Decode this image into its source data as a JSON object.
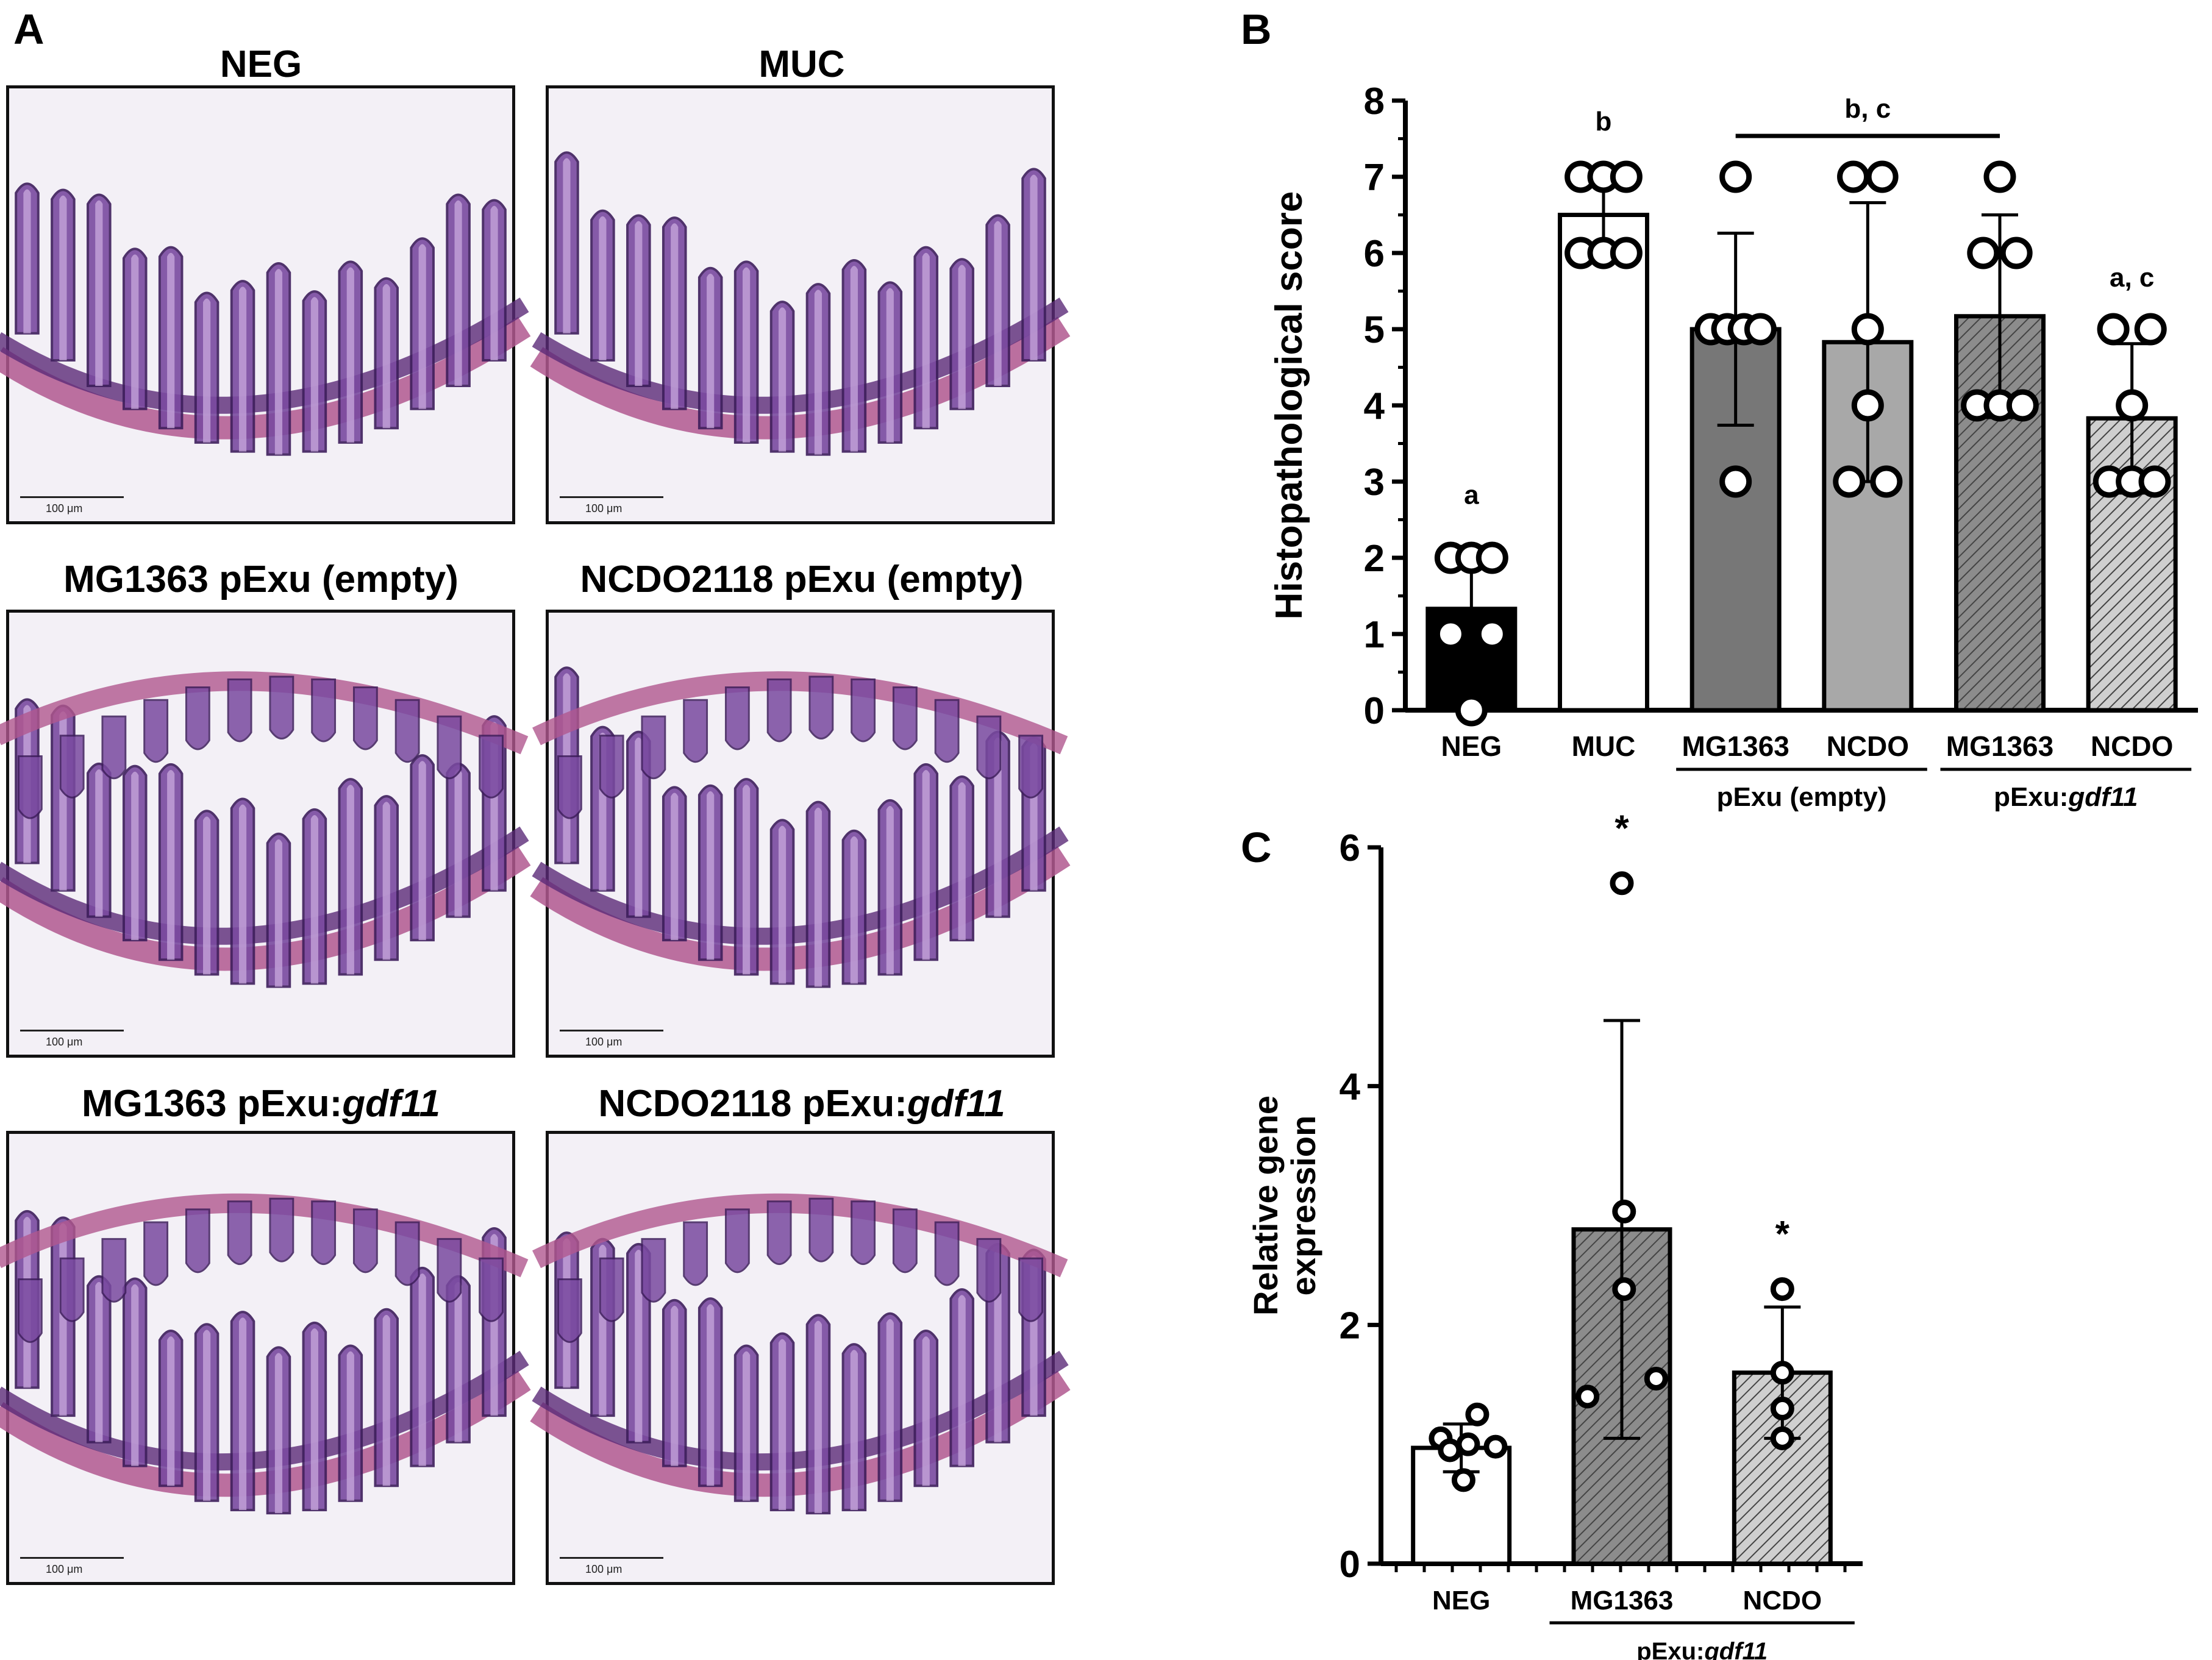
{
  "panels": {
    "a_label": "A",
    "b_label": "B",
    "c_label": "C"
  },
  "micrographs": [
    {
      "title": "NEG",
      "title_italic": "",
      "scale": "100 μm"
    },
    {
      "title": "MUC",
      "title_italic": "",
      "scale": "100 μm"
    },
    {
      "title": "MG1363 pExu (empty)",
      "title_italic": "",
      "scale": "100 μm"
    },
    {
      "title": "NCDO2118 pExu (empty)",
      "title_italic": "",
      "scale": "100 μm"
    },
    {
      "title": "MG1363 pExu:",
      "title_italic": "gdf11",
      "scale": "100 μm"
    },
    {
      "title": "NCDO2118 pExu:",
      "title_italic": "gdf11",
      "scale": "100 μm"
    }
  ],
  "chart_data": [
    {
      "panel": "B",
      "type": "bar",
      "ylabel": "Histopathological score",
      "ylim": [
        0,
        8
      ],
      "yticks": [
        0,
        1,
        2,
        3,
        4,
        5,
        6,
        7,
        8
      ],
      "categories": [
        "NEG",
        "MUC",
        "MG1363",
        "NCDO",
        "MG1363",
        "NCDO"
      ],
      "group_labels": [
        {
          "text": "pExu (empty)",
          "italic": "",
          "span": [
            2,
            3
          ]
        },
        {
          "text": "pExu:",
          "italic": "gdf11",
          "span": [
            4,
            5
          ]
        }
      ],
      "values": [
        1.33,
        6.5,
        5.0,
        4.83,
        5.17,
        3.83
      ],
      "errors": [
        0.82,
        0.55,
        1.26,
        1.83,
        1.33,
        0.98
      ],
      "fills": [
        "#000000",
        "#ffffff",
        "#777777",
        "#a8a8a8",
        "hatch-dark",
        "hatch-light"
      ],
      "points": [
        [
          {
            "y": 2,
            "dx": -0.5
          },
          {
            "y": 2,
            "dx": 0
          },
          {
            "y": 2,
            "dx": 0.5
          },
          {
            "y": 1,
            "dx": -0.5
          },
          {
            "y": 1,
            "dx": 0.5
          },
          {
            "y": 0,
            "dx": 0
          }
        ],
        [
          {
            "y": 7,
            "dx": -0.55
          },
          {
            "y": 7,
            "dx": 0
          },
          {
            "y": 7,
            "dx": 0.55
          },
          {
            "y": 6,
            "dx": -0.55
          },
          {
            "y": 6,
            "dx": 0
          },
          {
            "y": 6,
            "dx": 0.55
          }
        ],
        [
          {
            "y": 7,
            "dx": 0
          },
          {
            "y": 5,
            "dx": -0.6
          },
          {
            "y": 5,
            "dx": -0.2
          },
          {
            "y": 5,
            "dx": 0.2
          },
          {
            "y": 5,
            "dx": 0.6
          },
          {
            "y": 3,
            "dx": 0
          }
        ],
        [
          {
            "y": 7,
            "dx": -0.35
          },
          {
            "y": 7,
            "dx": 0.35
          },
          {
            "y": 5,
            "dx": 0
          },
          {
            "y": 4,
            "dx": 0
          },
          {
            "y": 3,
            "dx": -0.45
          },
          {
            "y": 3,
            "dx": 0.45
          }
        ],
        [
          {
            "y": 7,
            "dx": 0
          },
          {
            "y": 6,
            "dx": -0.4
          },
          {
            "y": 6,
            "dx": 0.4
          },
          {
            "y": 4,
            "dx": -0.55
          },
          {
            "y": 4,
            "dx": 0
          },
          {
            "y": 4,
            "dx": 0.55
          }
        ],
        [
          {
            "y": 5,
            "dx": -0.45
          },
          {
            "y": 5,
            "dx": 0.45
          },
          {
            "y": 4,
            "dx": 0
          },
          {
            "y": 3,
            "dx": -0.55
          },
          {
            "y": 3,
            "dx": 0
          },
          {
            "y": 3,
            "dx": 0.55
          }
        ]
      ],
      "annotations": [
        {
          "text": "a",
          "category": 0
        },
        {
          "text": "b",
          "category": 1
        },
        {
          "text": "b, c",
          "span": [
            2,
            4
          ]
        },
        {
          "text": "a, c",
          "category": 5
        }
      ]
    },
    {
      "panel": "C",
      "type": "bar",
      "ylabel": "Relative gene expression",
      "ylabel_lines": [
        "Relative gene",
        "expression"
      ],
      "ylim": [
        0,
        6
      ],
      "yticks": [
        0,
        2,
        4,
        6
      ],
      "categories": [
        "NEG",
        "MG1363",
        "NCDO"
      ],
      "group_labels": [
        {
          "text": "pExu:",
          "italic": "gdf11",
          "span": [
            1,
            2
          ]
        }
      ],
      "values": [
        0.97,
        2.8,
        1.6
      ],
      "errors": [
        0.2,
        1.75,
        0.55
      ],
      "fills": [
        "#ffffff",
        "hatch-dark",
        "hatch-light"
      ],
      "points": [
        [
          {
            "y": 1.25,
            "dx": 0.35
          },
          {
            "y": 1.05,
            "dx": -0.45
          },
          {
            "y": 1.0,
            "dx": 0.15
          },
          {
            "y": 0.98,
            "dx": 0.75
          },
          {
            "y": 0.95,
            "dx": -0.25
          },
          {
            "y": 0.7,
            "dx": 0.05
          }
        ],
        [
          {
            "y": 5.7,
            "dx": 0
          },
          {
            "y": 2.95,
            "dx": 0.05
          },
          {
            "y": 2.3,
            "dx": 0.05
          },
          {
            "y": 1.55,
            "dx": 0.75
          },
          {
            "y": 1.4,
            "dx": -0.75
          }
        ],
        [
          {
            "y": 2.3,
            "dx": 0
          },
          {
            "y": 1.6,
            "dx": 0
          },
          {
            "y": 1.3,
            "dx": 0
          },
          {
            "y": 1.05,
            "dx": 0
          }
        ]
      ],
      "annotations": [
        {
          "text": "*",
          "category": 1
        },
        {
          "text": "*",
          "category": 2
        }
      ]
    }
  ]
}
